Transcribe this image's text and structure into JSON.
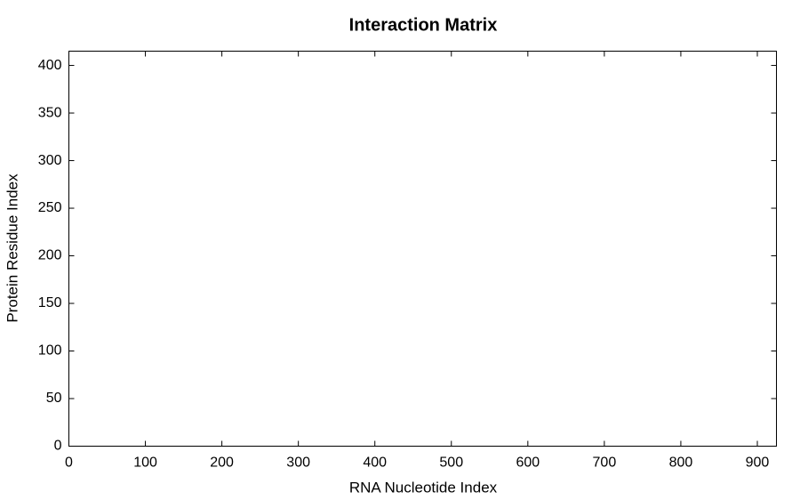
{
  "chart_data": {
    "type": "heatmap",
    "title": "Interaction Matrix",
    "xlabel": "RNA Nucleotide Index",
    "ylabel": "Protein Residue Index",
    "xlim": [
      0,
      925
    ],
    "ylim": [
      0,
      415
    ],
    "xticks": [
      0,
      100,
      200,
      300,
      400,
      500,
      600,
      700,
      800,
      900
    ],
    "yticks": [
      0,
      50,
      100,
      150,
      200,
      250,
      300,
      350,
      400
    ],
    "grid": false
  }
}
